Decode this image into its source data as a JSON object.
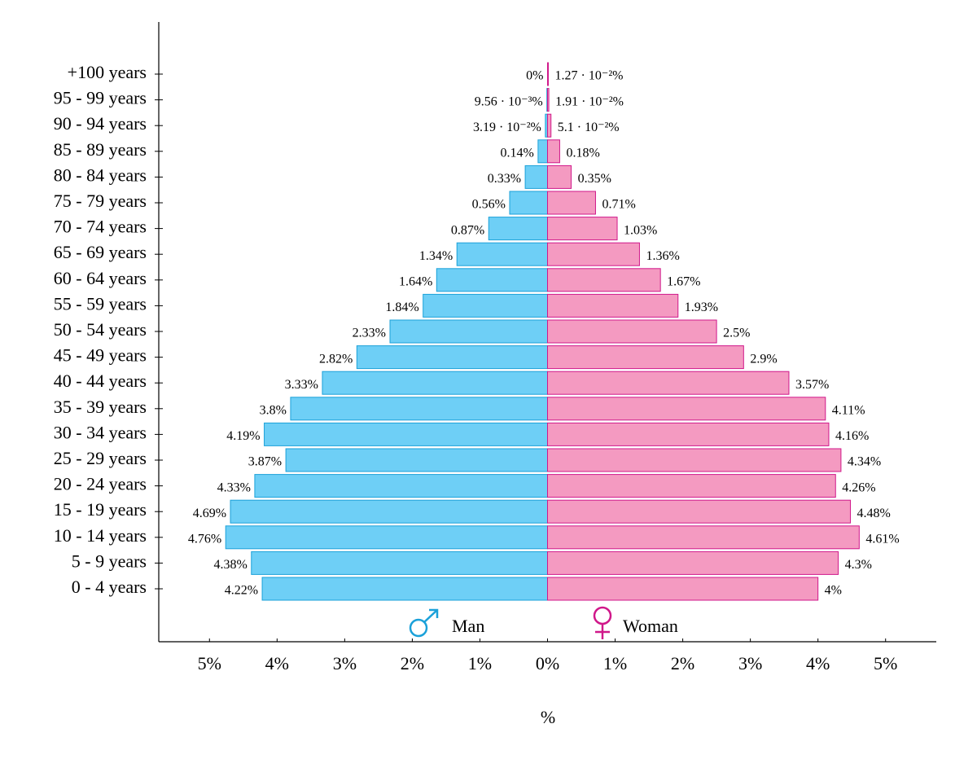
{
  "chart_data": {
    "type": "pyramid",
    "x_label": "%",
    "categories": [
      "0 - 4 years",
      "5 - 9 years",
      "10 - 14 years",
      "15 - 19 years",
      "20 - 24 years",
      "25 - 29 years",
      "30 - 34 years",
      "35 - 39 years",
      "40 - 44 years",
      "45 - 49 years",
      "50 - 54 years",
      "55 - 59 years",
      "60 - 64 years",
      "65 - 69 years",
      "70 - 74 years",
      "75 - 79 years",
      "80 - 84 years",
      "85 - 89 years",
      "90 - 94 years",
      "95 - 99 years",
      "+100 years"
    ],
    "series": [
      {
        "name": "Man",
        "side": "left",
        "color": "#6ecff6",
        "edge": "#1ba1d9",
        "values": [
          4.22,
          4.38,
          4.76,
          4.69,
          4.33,
          3.87,
          4.19,
          3.8,
          3.33,
          2.82,
          2.33,
          1.84,
          1.64,
          1.34,
          0.87,
          0.56,
          0.33,
          0.14,
          0.0319,
          0.00956,
          0
        ],
        "value_labels": [
          "4.22%",
          "4.38%",
          "4.76%",
          "4.69%",
          "4.33%",
          "3.87%",
          "4.19%",
          "3.8%",
          "3.33%",
          "2.82%",
          "2.33%",
          "1.84%",
          "1.64%",
          "1.34%",
          "0.87%",
          "0.56%",
          "0.33%",
          "0.14%",
          "3.19 · 10⁻²%",
          "9.56 · 10⁻³%",
          "0%"
        ]
      },
      {
        "name": "Woman",
        "side": "right",
        "color": "#f49ac1",
        "edge": "#d0188a",
        "values": [
          4,
          4.3,
          4.61,
          4.48,
          4.26,
          4.34,
          4.16,
          4.11,
          3.57,
          2.9,
          2.5,
          1.93,
          1.67,
          1.36,
          1.03,
          0.71,
          0.35,
          0.18,
          0.051,
          0.0191,
          0.0127
        ],
        "value_labels": [
          "4%",
          "4.3%",
          "4.61%",
          "4.48%",
          "4.26%",
          "4.34%",
          "4.16%",
          "4.11%",
          "3.57%",
          "2.9%",
          "2.5%",
          "1.93%",
          "1.67%",
          "1.36%",
          "1.03%",
          "0.71%",
          "0.35%",
          "0.18%",
          "5.1 · 10⁻²%",
          "1.91 · 10⁻²%",
          "1.27 · 10⁻²%"
        ]
      }
    ],
    "xlim": [
      -5.75,
      5.75
    ],
    "xticks": [
      {
        "value": -5,
        "label": "5%"
      },
      {
        "value": -4,
        "label": "4%"
      },
      {
        "value": -3,
        "label": "3%"
      },
      {
        "value": -2,
        "label": "2%"
      },
      {
        "value": -1,
        "label": "1%"
      },
      {
        "value": 0,
        "label": "0%"
      },
      {
        "value": 1,
        "label": "1%"
      },
      {
        "value": 2,
        "label": "2%"
      },
      {
        "value": 3,
        "label": "3%"
      },
      {
        "value": 4,
        "label": "4%"
      },
      {
        "value": 5,
        "label": "5%"
      }
    ]
  }
}
